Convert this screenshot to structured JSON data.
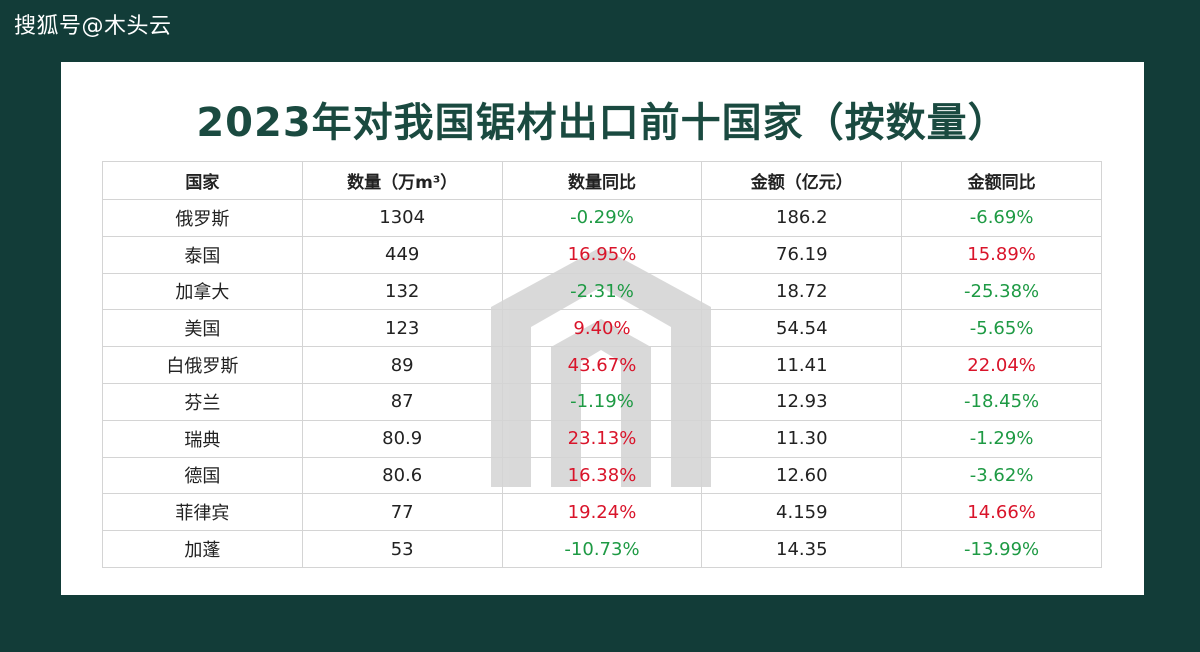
{
  "brand": "搜狐号@木头云",
  "title": "2023年对我国锯材出口前十国家（按数量）",
  "colors": {
    "background": "#123c38",
    "title": "#1a4a40",
    "increase": "#d9142a",
    "decrease": "#1e9a44"
  },
  "table": {
    "headers": [
      "国家",
      "数量（万m³）",
      "数量同比",
      "金额（亿元）",
      "金额同比"
    ],
    "rows": [
      {
        "country": "俄罗斯",
        "quantity": "1304",
        "quantity_yoy": "-0.29%",
        "amount": "186.2",
        "amount_yoy": "-6.69%"
      },
      {
        "country": "泰国",
        "quantity": "449",
        "quantity_yoy": "16.95%",
        "amount": "76.19",
        "amount_yoy": "15.89%"
      },
      {
        "country": "加拿大",
        "quantity": "132",
        "quantity_yoy": "-2.31%",
        "amount": "18.72",
        "amount_yoy": "-25.38%"
      },
      {
        "country": "美国",
        "quantity": "123",
        "quantity_yoy": "9.40%",
        "amount": "54.54",
        "amount_yoy": "-5.65%"
      },
      {
        "country": "白俄罗斯",
        "quantity": "89",
        "quantity_yoy": "43.67%",
        "amount": "11.41",
        "amount_yoy": "22.04%"
      },
      {
        "country": "芬兰",
        "quantity": "87",
        "quantity_yoy": "-1.19%",
        "amount": "12.93",
        "amount_yoy": "-18.45%"
      },
      {
        "country": "瑞典",
        "quantity": "80.9",
        "quantity_yoy": "23.13%",
        "amount": "11.30",
        "amount_yoy": "-1.29%"
      },
      {
        "country": "德国",
        "quantity": "80.6",
        "quantity_yoy": "16.38%",
        "amount": "12.60",
        "amount_yoy": "-3.62%"
      },
      {
        "country": "菲律宾",
        "quantity": "77",
        "quantity_yoy": "19.24%",
        "amount": "4.159",
        "amount_yoy": "14.66%"
      },
      {
        "country": "加蓬",
        "quantity": "53",
        "quantity_yoy": "-10.73%",
        "amount": "14.35",
        "amount_yoy": "-13.99%"
      }
    ]
  }
}
